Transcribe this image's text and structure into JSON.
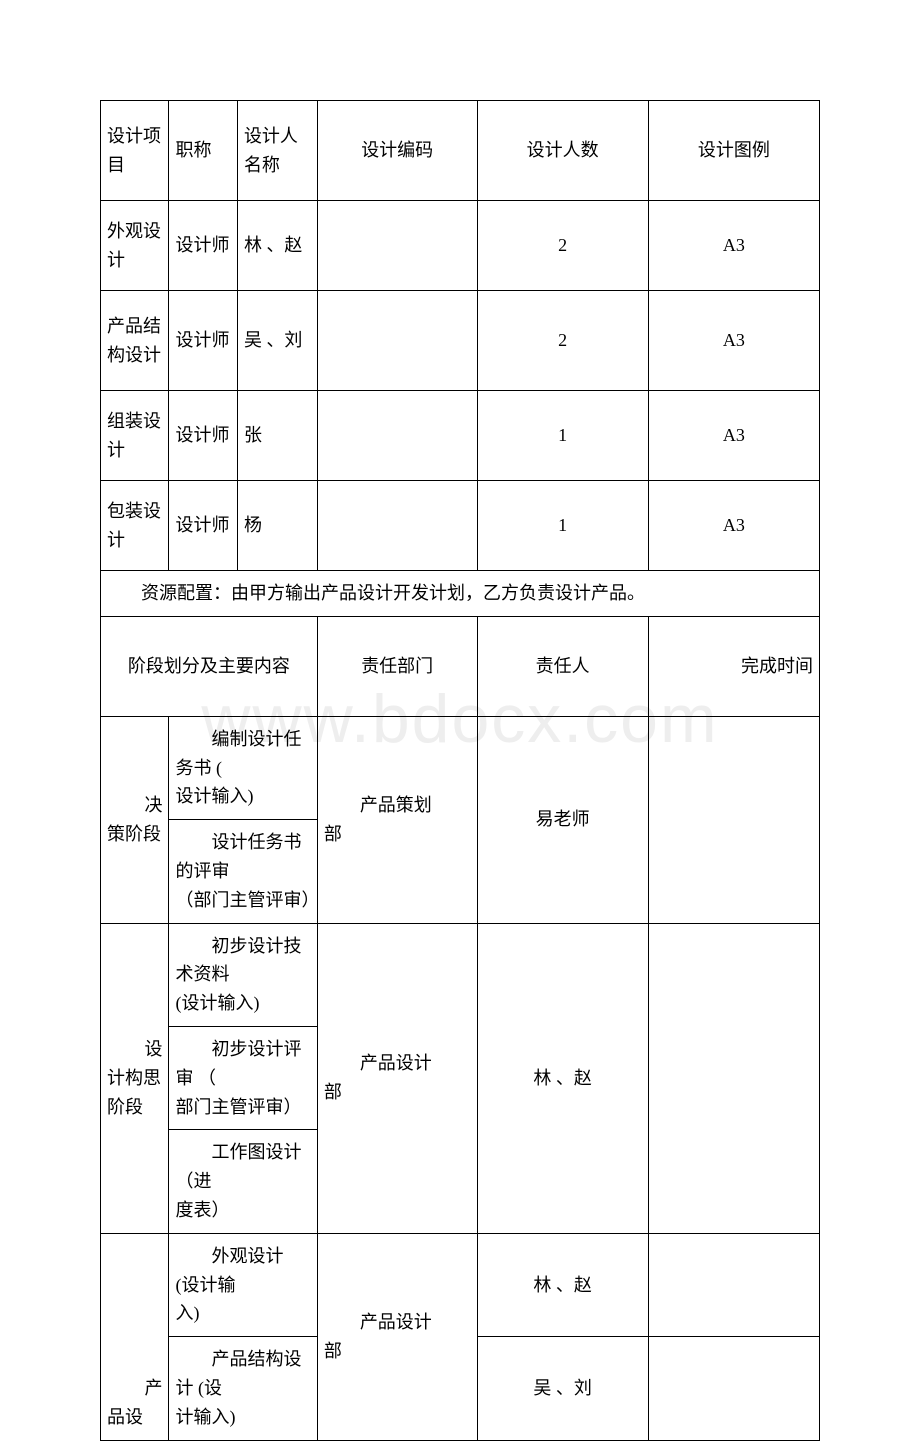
{
  "watermark": {
    "text": "www.bdocx.com"
  },
  "table1": {
    "headers": {
      "project": "设计项目",
      "title": "职称",
      "designer": "设计人名称",
      "code": "设计编码",
      "count": "设计人数",
      "legend": "设计图例"
    },
    "rows": [
      {
        "project": "外观设计",
        "title": "设计师",
        "designer": "林 、赵",
        "code": "",
        "count": "2",
        "legend": "A3"
      },
      {
        "project": "产品结构设计",
        "title": "设计师",
        "designer": "吴 、刘",
        "code": "",
        "count": "2",
        "legend": "A3"
      },
      {
        "project": "组装设计",
        "title": "设计师",
        "designer": "张",
        "code": "",
        "count": "1",
        "legend": "A3"
      },
      {
        "project": "包装设计",
        "title": "设计师",
        "designer": "杨",
        "code": "",
        "count": "1",
        "legend": "A3"
      }
    ],
    "resource": "资源配置：由甲方输出产品设计开发计划，乙方负责设计产品。"
  },
  "table2": {
    "headers": {
      "stage": "阶段划分及主要内容",
      "dept": "责任部门",
      "person": "责任人",
      "time": "完成时间"
    },
    "stages": [
      {
        "label_prefix": "决",
        "label_rest": "策阶段",
        "dept_prefix": "产品策划",
        "dept_rest": "部",
        "person": "易老师",
        "items": [
          {
            "prefix": "编制设计任务书 (",
            "rest": "设计输入)"
          },
          {
            "prefix": "设计任务书的评审",
            "rest": "（部门主管评审）"
          }
        ]
      },
      {
        "label_prefix": "设",
        "label_rest": "计构思阶段",
        "dept_prefix": "产品设计",
        "dept_rest": "部",
        "person": "林 、赵",
        "items": [
          {
            "prefix": "初步设计技术资料",
            "rest": " (设计输入)"
          },
          {
            "prefix": "初步设计评审 （",
            "rest": "部门主管评审）"
          },
          {
            "prefix": "工作图设计 （进",
            "rest": "度表）"
          }
        ]
      },
      {
        "label_prefix": "产",
        "label_rest": "品设",
        "dept_prefix": "产品设计",
        "dept_rest": "部",
        "items": [
          {
            "prefix": "外观设计 (设计输",
            "rest": "入)",
            "person": "林 、赵"
          },
          {
            "prefix": "产品结构设计 (设",
            "rest": "计输入)",
            "person": "吴 、刘"
          }
        ]
      }
    ]
  }
}
